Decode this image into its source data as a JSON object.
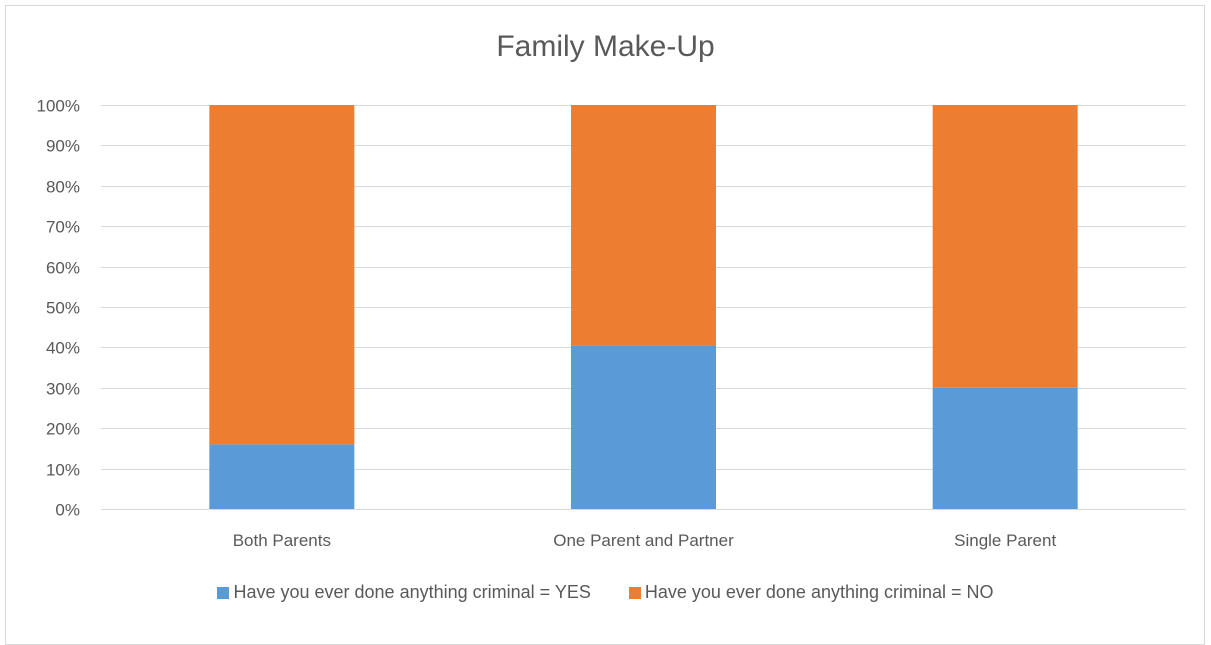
{
  "chart_data": {
    "type": "bar",
    "stacked": true,
    "percent": true,
    "title": "Family Make-Up",
    "categories": [
      "Both Parents",
      "One Parent and Partner",
      "Single Parent"
    ],
    "y_ticks": [
      "0%",
      "10%",
      "20%",
      "30%",
      "40%",
      "50%",
      "60%",
      "70%",
      "80%",
      "90%",
      "100%"
    ],
    "ylim": [
      0,
      100
    ],
    "grid": true,
    "legend_position": "bottom",
    "series": [
      {
        "name": "Have you ever done anything criminal = YES",
        "color": "#5b9bd5",
        "values": [
          16,
          40.5,
          30
        ]
      },
      {
        "name": "Have you ever done anything criminal = NO",
        "color": "#ed7d31",
        "values": [
          84,
          59.5,
          70
        ]
      }
    ]
  }
}
